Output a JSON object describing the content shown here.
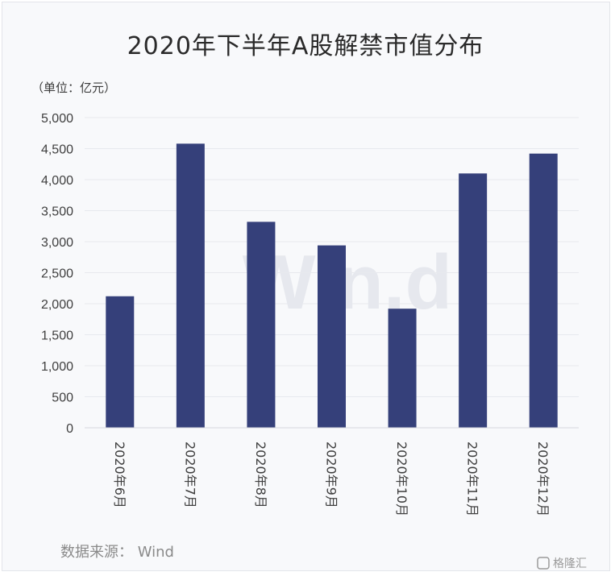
{
  "chart_data": {
    "type": "bar",
    "title": "2020年下半年A股解禁市值分布",
    "unit_label": "（单位：亿元）",
    "categories": [
      "2020年6月",
      "2020年7月",
      "2020年8月",
      "2020年9月",
      "2020年10月",
      "2020年11月",
      "2020年12月"
    ],
    "values": [
      2120,
      4580,
      3320,
      2940,
      1920,
      4100,
      4420
    ],
    "ylim": [
      0,
      5000
    ],
    "yticks": [
      0,
      500,
      1000,
      1500,
      2000,
      2500,
      3000,
      3500,
      4000,
      4500,
      5000
    ],
    "ytick_labels": [
      "0",
      "500",
      "1,000",
      "1,500",
      "2,000",
      "2,500",
      "3,000",
      "3,500",
      "4,000",
      "4,500",
      "5,000"
    ],
    "grid": true,
    "bar_color": "#35407a",
    "source": "数据来源：  Wind",
    "watermark": "Win.d",
    "logo": "格隆汇"
  }
}
